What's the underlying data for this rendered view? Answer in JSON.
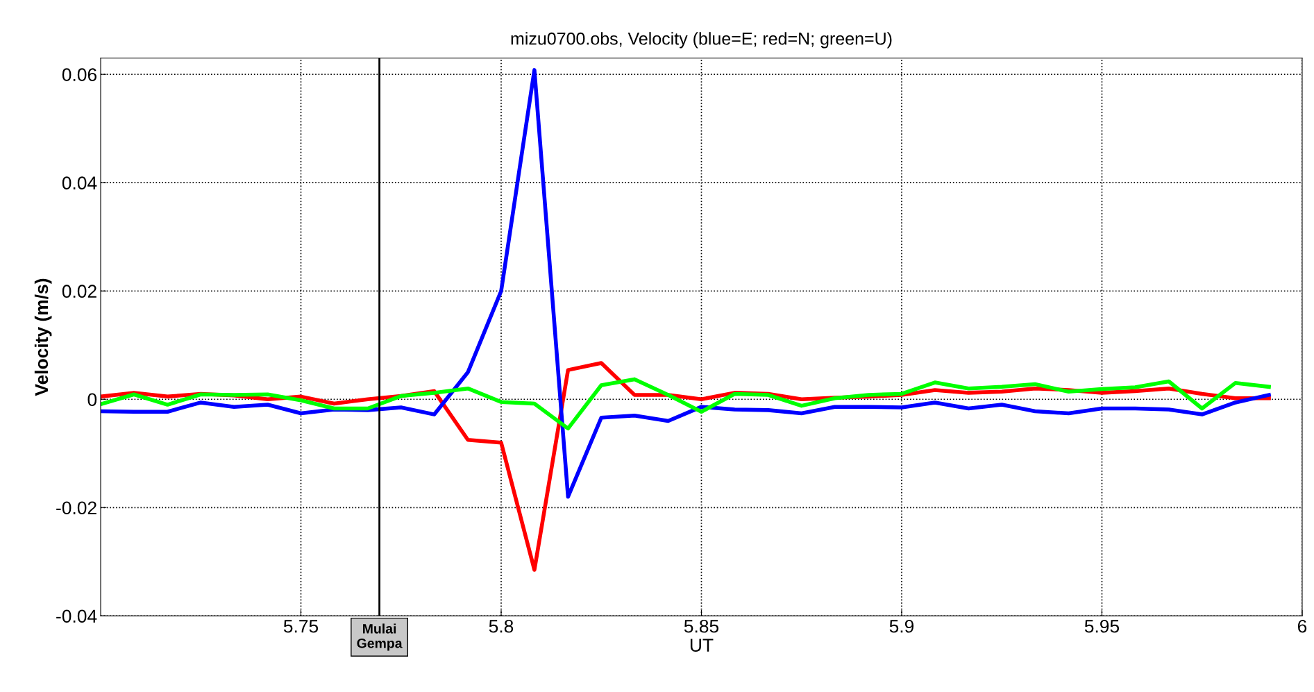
{
  "chart_data": {
    "type": "line",
    "title": "mizu0700.obs, Velocity (blue=E; red=N; green=U)",
    "xlabel": "UT",
    "ylabel": "Velocity (m/s)",
    "x": [
      5.7,
      5.7083,
      5.7167,
      5.725,
      5.7333,
      5.7417,
      5.75,
      5.7583,
      5.7667,
      5.775,
      5.7833,
      5.7917,
      5.8,
      5.8083,
      5.8167,
      5.825,
      5.8333,
      5.8417,
      5.85,
      5.8583,
      5.8667,
      5.875,
      5.8833,
      5.8917,
      5.9,
      5.9083,
      5.9167,
      5.925,
      5.9333,
      5.9417,
      5.95,
      5.9583,
      5.9667,
      5.975,
      5.9833,
      5.9917
    ],
    "series": [
      {
        "color": "#ff0000",
        "values": [
          0.0005,
          0.0012,
          0.0005,
          0.001,
          0.0007,
          0.0,
          0.0005,
          -0.0008,
          0.0,
          0.0006,
          0.0015,
          -0.0075,
          -0.008,
          -0.0315,
          0.0054,
          0.0067,
          0.0008,
          0.0008,
          0.0,
          0.0012,
          0.001,
          0.0,
          0.0003,
          0.0005,
          0.0008,
          0.0017,
          0.0012,
          0.0014,
          0.002,
          0.0017,
          0.0012,
          0.0015,
          0.002,
          0.001,
          0.0002,
          0.0002
        ]
      },
      {
        "color": "#0000ff",
        "values": [
          -0.0022,
          -0.0023,
          -0.0023,
          -0.0006,
          -0.0014,
          -0.001,
          -0.0026,
          -0.0019,
          -0.002,
          -0.0015,
          -0.0028,
          0.005,
          0.02,
          0.0608,
          -0.018,
          -0.0034,
          -0.003,
          -0.004,
          -0.0014,
          -0.0019,
          -0.002,
          -0.0026,
          -0.0014,
          -0.0014,
          -0.0015,
          -0.0006,
          -0.0017,
          -0.001,
          -0.0022,
          -0.0026,
          -0.0017,
          -0.0017,
          -0.0019,
          -0.0028,
          -0.0006,
          0.0008
        ]
      },
      {
        "color": "#00ff00",
        "values": [
          -0.0009,
          0.0009,
          -0.001,
          0.0009,
          0.0008,
          0.0009,
          -0.0002,
          -0.0017,
          -0.0017,
          0.0006,
          0.0012,
          0.002,
          -0.0005,
          -0.0008,
          -0.0054,
          0.0026,
          0.0037,
          0.0008,
          -0.0023,
          0.001,
          0.0008,
          -0.0012,
          0.0002,
          0.0008,
          0.001,
          0.0031,
          0.002,
          0.0023,
          0.0028,
          0.0014,
          0.0019,
          0.0022,
          0.0033,
          -0.0017,
          0.003,
          0.0023
        ]
      }
    ],
    "xlim": [
      5.7,
      6.0
    ],
    "xticks": [
      5.75,
      5.8,
      5.85,
      5.9,
      5.95,
      6
    ],
    "ylim": [
      -0.04,
      0.063
    ],
    "yticks": [
      -0.04,
      -0.02,
      0,
      0.02,
      0.04,
      0.06
    ],
    "grid": true,
    "line_style": "solid",
    "ref_lines": [
      {
        "axis": "x",
        "value": 5.7696,
        "label": "Mulai\nGempa",
        "color": "#000000"
      }
    ]
  }
}
